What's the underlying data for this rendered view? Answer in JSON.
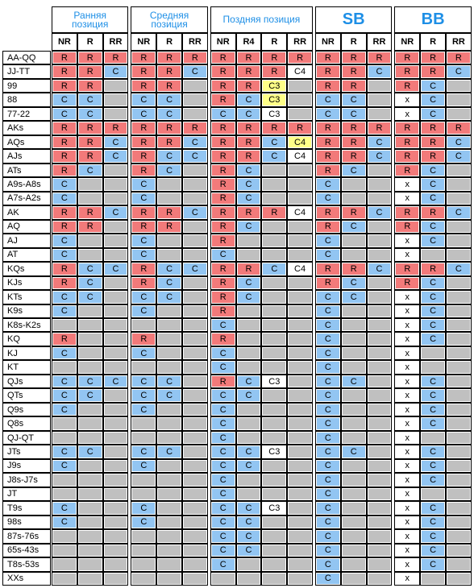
{
  "colors": {
    "R": "#f27a7a",
    "C": "#92c5f2",
    "x": "#ffffff",
    "C3": "#ffffff",
    "C4": "#ffffff",
    "empty": "#c0c0c0"
  },
  "groups": [
    {
      "title": "Ранняя позиция",
      "columns": [
        "NR",
        "R",
        "RR"
      ]
    },
    {
      "title": "Средняя позиция",
      "columns": [
        "NR",
        "R",
        "RR"
      ]
    },
    {
      "title": "Поздняя позиция",
      "columns": [
        "NR",
        "R4",
        "R",
        "RR"
      ]
    },
    {
      "title": "SB",
      "columns": [
        "NR",
        "R",
        "RR"
      ]
    },
    {
      "title": "BB",
      "columns": [
        "NR",
        "R",
        "RR"
      ]
    }
  ],
  "rows": [
    {
      "hand": "AA-QQ",
      "cells": [
        "R",
        "R",
        "R",
        "R",
        "R",
        "R",
        "R",
        "R",
        "R",
        "R",
        "R",
        "R",
        "R",
        "R",
        "R",
        "R"
      ]
    },
    {
      "hand": "JJ-TT",
      "cells": [
        "R",
        "R",
        "C",
        "R",
        "R",
        "C",
        "R",
        "R",
        "R",
        "C4",
        "R",
        "R",
        "C",
        "R",
        "R",
        "C"
      ]
    },
    {
      "hand": "99",
      "cells": [
        "R",
        "R",
        null,
        "R",
        "R",
        null,
        "R",
        "R",
        {
          "text": "C3",
          "color": "#ffff88"
        },
        null,
        "R",
        "R",
        null,
        "R",
        "C",
        null
      ]
    },
    {
      "hand": "88",
      "cells": [
        "C",
        "C",
        null,
        "C",
        "C",
        null,
        "R",
        "C",
        {
          "text": "C3",
          "color": "#ffff88"
        },
        null,
        "C",
        "C",
        null,
        "x",
        "C",
        null
      ]
    },
    {
      "hand": "77-22",
      "cells": [
        "C",
        "C",
        null,
        "C",
        "C",
        null,
        "C",
        "C",
        "C3",
        null,
        "C",
        "C",
        null,
        "x",
        "C",
        null
      ]
    },
    {
      "hand": "AKs",
      "cells": [
        "R",
        "R",
        "R",
        "R",
        "R",
        "R",
        "R",
        "R",
        "R",
        "R",
        "R",
        "R",
        "R",
        "R",
        "R",
        "R"
      ]
    },
    {
      "hand": "AQs",
      "cells": [
        "R",
        "R",
        "C",
        "R",
        "R",
        "C",
        "R",
        "R",
        "C",
        {
          "text": "C4",
          "color": "#ffff88"
        },
        "R",
        "R",
        "C",
        "R",
        "R",
        "C"
      ]
    },
    {
      "hand": "AJs",
      "cells": [
        "R",
        "R",
        "C",
        "R",
        "C",
        "C",
        "R",
        "R",
        "C",
        "C4",
        "R",
        "R",
        "C",
        "R",
        "R",
        "C"
      ]
    },
    {
      "hand": "ATs",
      "cells": [
        "R",
        "C",
        null,
        "R",
        "C",
        null,
        "R",
        "C",
        null,
        null,
        "R",
        "C",
        null,
        "R",
        "C",
        null
      ]
    },
    {
      "hand": "A9s-A8s",
      "cells": [
        "C",
        null,
        null,
        "C",
        null,
        null,
        "R",
        "C",
        null,
        null,
        "C",
        null,
        null,
        "x",
        "C",
        null
      ]
    },
    {
      "hand": "A7s-A2s",
      "cells": [
        "C",
        null,
        null,
        "C",
        null,
        null,
        "R",
        "C",
        null,
        null,
        "C",
        null,
        null,
        "x",
        "C",
        null
      ]
    },
    {
      "hand": "AK",
      "cells": [
        "R",
        "R",
        "C",
        "R",
        "R",
        "C",
        "R",
        "R",
        "R",
        "C4",
        "R",
        "R",
        "C",
        "R",
        "R",
        "C"
      ]
    },
    {
      "hand": "AQ",
      "cells": [
        "R",
        "R",
        null,
        "R",
        "R",
        null,
        "R",
        "C",
        null,
        null,
        "R",
        "C",
        null,
        "R",
        "C",
        null
      ]
    },
    {
      "hand": "AJ",
      "cells": [
        "C",
        null,
        null,
        "C",
        null,
        null,
        "R",
        null,
        null,
        null,
        "C",
        null,
        null,
        "x",
        "C",
        null
      ]
    },
    {
      "hand": "AT",
      "cells": [
        "C",
        null,
        null,
        "C",
        null,
        null,
        "C",
        null,
        null,
        null,
        "C",
        null,
        null,
        "x",
        null,
        null
      ]
    },
    {
      "hand": "KQs",
      "cells": [
        "R",
        "C",
        "C",
        "R",
        "C",
        "C",
        "R",
        "R",
        "C",
        "C4",
        "R",
        "R",
        "C",
        "R",
        "R",
        "C"
      ]
    },
    {
      "hand": "KJs",
      "cells": [
        "R",
        "C",
        null,
        "R",
        "C",
        null,
        "R",
        "C",
        null,
        null,
        "R",
        "C",
        null,
        "R",
        "C",
        null
      ]
    },
    {
      "hand": "KTs",
      "cells": [
        "C",
        "C",
        null,
        "C",
        "C",
        null,
        "R",
        "C",
        null,
        null,
        "C",
        "C",
        null,
        "x",
        "C",
        null
      ]
    },
    {
      "hand": "K9s",
      "cells": [
        "C",
        null,
        null,
        "C",
        null,
        null,
        "R",
        null,
        null,
        null,
        "C",
        null,
        null,
        "x",
        "C",
        null
      ]
    },
    {
      "hand": "K8s-K2s",
      "cells": [
        null,
        null,
        null,
        null,
        null,
        null,
        "C",
        null,
        null,
        null,
        "C",
        null,
        null,
        "x",
        "C",
        null
      ]
    },
    {
      "hand": "KQ",
      "cells": [
        "R",
        null,
        null,
        "R",
        null,
        null,
        "R",
        null,
        null,
        null,
        "C",
        null,
        null,
        "x",
        "C",
        null
      ]
    },
    {
      "hand": "KJ",
      "cells": [
        "C",
        null,
        null,
        "C",
        null,
        null,
        "C",
        null,
        null,
        null,
        "C",
        null,
        null,
        "x",
        null,
        null
      ]
    },
    {
      "hand": "KT",
      "cells": [
        null,
        null,
        null,
        null,
        null,
        null,
        "C",
        null,
        null,
        null,
        "C",
        null,
        null,
        "x",
        null,
        null
      ]
    },
    {
      "hand": "QJs",
      "cells": [
        "C",
        "C",
        "C",
        "C",
        "C",
        null,
        "R",
        "C",
        "C3",
        null,
        "C",
        "C",
        null,
        "x",
        "C",
        null
      ]
    },
    {
      "hand": "QTs",
      "cells": [
        "C",
        "C",
        null,
        "C",
        "C",
        null,
        "C",
        "C",
        null,
        null,
        "C",
        null,
        null,
        "x",
        "C",
        null
      ]
    },
    {
      "hand": "Q9s",
      "cells": [
        "C",
        null,
        null,
        "C",
        null,
        null,
        "C",
        null,
        null,
        null,
        "C",
        null,
        null,
        "x",
        "C",
        null
      ]
    },
    {
      "hand": "Q8s",
      "cells": [
        null,
        null,
        null,
        null,
        null,
        null,
        "C",
        null,
        null,
        null,
        "C",
        null,
        null,
        "x",
        "C",
        null
      ]
    },
    {
      "hand": "QJ-QT",
      "cells": [
        null,
        null,
        null,
        null,
        null,
        null,
        "C",
        null,
        null,
        null,
        "C",
        null,
        null,
        "x",
        null,
        null
      ]
    },
    {
      "hand": "JTs",
      "cells": [
        "C",
        "C",
        null,
        "C",
        "C",
        null,
        "C",
        "C",
        "C3",
        null,
        "C",
        "C",
        null,
        "x",
        "C",
        null
      ]
    },
    {
      "hand": "J9s",
      "cells": [
        "C",
        null,
        null,
        "C",
        null,
        null,
        "C",
        "C",
        null,
        null,
        "C",
        null,
        null,
        "x",
        "C",
        null
      ]
    },
    {
      "hand": "J8s-J7s",
      "cells": [
        null,
        null,
        null,
        null,
        null,
        null,
        "C",
        null,
        null,
        null,
        "C",
        null,
        null,
        "x",
        "C",
        null
      ]
    },
    {
      "hand": "JT",
      "cells": [
        null,
        null,
        null,
        null,
        null,
        null,
        "C",
        null,
        null,
        null,
        "C",
        null,
        null,
        "x",
        null,
        null
      ]
    },
    {
      "hand": "T9s",
      "cells": [
        "C",
        null,
        null,
        "C",
        null,
        null,
        "C",
        "C",
        "C3",
        null,
        "C",
        null,
        null,
        "x",
        "C",
        null
      ]
    },
    {
      "hand": "98s",
      "cells": [
        "C",
        null,
        null,
        "C",
        null,
        null,
        "C",
        "C",
        null,
        null,
        "C",
        null,
        null,
        "x",
        "C",
        null
      ]
    },
    {
      "hand": "87s-76s",
      "cells": [
        null,
        null,
        null,
        null,
        null,
        null,
        "C",
        "C",
        null,
        null,
        "C",
        null,
        null,
        "x",
        "C",
        null
      ]
    },
    {
      "hand": "65s-43s",
      "cells": [
        null,
        null,
        null,
        null,
        null,
        null,
        "C",
        "C",
        null,
        null,
        "C",
        null,
        null,
        "x",
        "C",
        null
      ]
    },
    {
      "hand": "T8s-53s",
      "cells": [
        null,
        null,
        null,
        null,
        null,
        null,
        "C",
        null,
        null,
        null,
        "C",
        null,
        null,
        "x",
        "C",
        null
      ]
    },
    {
      "hand": "XXs",
      "cells": [
        null,
        null,
        null,
        null,
        null,
        null,
        null,
        null,
        null,
        null,
        "C",
        null,
        null,
        "x",
        null,
        null
      ]
    }
  ]
}
